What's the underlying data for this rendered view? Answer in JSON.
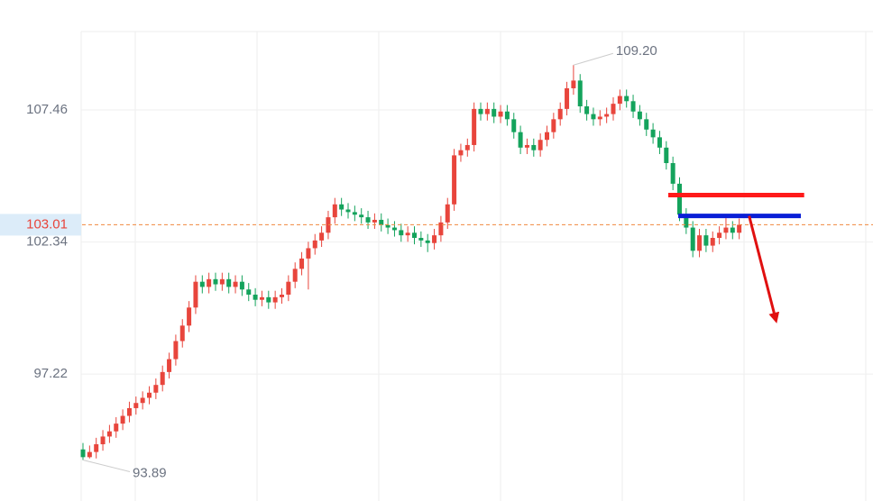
{
  "chart_data": {
    "type": "candlestick",
    "ylim": [
      92.3,
      110.5
    ],
    "yticks": [
      97.22,
      102.34,
      107.46
    ],
    "grid": true,
    "up_color": "#e8453c",
    "down_color": "#14a35c",
    "open": [
      94.3,
      94.0,
      94.2,
      94.5,
      94.8,
      95.0,
      95.3,
      95.6,
      95.9,
      96.1,
      96.3,
      96.5,
      96.8,
      97.3,
      97.8,
      98.5,
      99.1,
      99.8,
      100.8,
      100.6,
      100.9,
      100.7,
      100.9,
      100.6,
      100.8,
      100.5,
      100.3,
      100.1,
      100.2,
      100.0,
      100.2,
      100.3,
      100.8,
      101.3,
      101.7,
      102.1,
      102.4,
      102.7,
      103.3,
      103.8,
      103.6,
      103.5,
      103.4,
      103.3,
      103.1,
      103.2,
      103.0,
      102.9,
      102.8,
      102.6,
      102.7,
      102.5,
      102.4,
      102.3,
      102.6,
      103.1,
      103.8,
      105.7,
      105.9,
      106.1,
      107.5,
      107.3,
      107.5,
      107.2,
      107.4,
      107.1,
      106.6,
      106.0,
      106.1,
      105.9,
      106.3,
      106.6,
      107.1,
      107.5,
      108.3,
      108.6,
      107.6,
      107.3,
      107.1,
      107.2,
      107.3,
      107.7,
      108.0,
      107.8,
      107.4,
      107.1,
      106.7,
      106.4,
      106.0,
      105.4,
      104.6,
      103.4,
      102.9,
      102.0,
      102.6,
      102.2,
      102.5,
      102.7,
      102.9,
      102.7
    ],
    "high": [
      94.55,
      94.45,
      94.75,
      95.05,
      95.25,
      95.55,
      95.85,
      96.15,
      96.35,
      96.55,
      96.75,
      97.05,
      97.55,
      98.05,
      98.75,
      99.35,
      100.05,
      101.05,
      101.05,
      101.15,
      101.15,
      101.15,
      101.15,
      101.05,
      101.05,
      100.75,
      100.55,
      100.45,
      100.45,
      100.45,
      100.55,
      101.05,
      101.55,
      101.95,
      102.35,
      102.65,
      102.95,
      103.55,
      104.05,
      104.05,
      103.85,
      103.75,
      103.65,
      103.55,
      103.45,
      103.45,
      103.25,
      103.15,
      103.05,
      102.95,
      102.95,
      102.75,
      102.65,
      102.85,
      103.35,
      104.05,
      105.95,
      106.15,
      106.35,
      107.75,
      107.75,
      107.75,
      107.75,
      107.65,
      107.65,
      107.35,
      106.85,
      106.35,
      106.35,
      106.55,
      106.85,
      107.35,
      107.75,
      108.55,
      109.2,
      108.85,
      107.85,
      107.55,
      107.45,
      107.55,
      107.95,
      108.25,
      108.25,
      108.05,
      107.65,
      107.35,
      106.95,
      106.65,
      106.25,
      105.65,
      104.85,
      103.65,
      103.15,
      102.85,
      102.85,
      102.75,
      102.95,
      103.35,
      103.15,
      103.25
    ],
    "low": [
      93.89,
      93.95,
      93.95,
      94.25,
      94.55,
      94.75,
      95.05,
      95.35,
      95.65,
      95.85,
      96.05,
      96.25,
      96.55,
      97.05,
      97.55,
      98.25,
      98.85,
      99.55,
      100.35,
      100.35,
      100.45,
      100.45,
      100.35,
      100.35,
      100.25,
      100.05,
      99.85,
      99.85,
      99.75,
      99.75,
      99.95,
      100.05,
      100.55,
      101.05,
      100.5,
      101.85,
      102.15,
      102.45,
      103.05,
      103.35,
      103.25,
      103.15,
      103.05,
      102.85,
      102.85,
      102.75,
      102.65,
      102.55,
      102.35,
      102.35,
      102.25,
      102.15,
      101.95,
      102.05,
      102.35,
      102.85,
      103.55,
      105.45,
      105.65,
      105.85,
      107.05,
      107.05,
      106.95,
      106.95,
      106.85,
      106.35,
      105.75,
      105.75,
      105.65,
      105.65,
      106.05,
      106.35,
      106.85,
      107.25,
      108.05,
      107.35,
      107.05,
      106.85,
      106.85,
      106.95,
      107.05,
      107.45,
      107.55,
      107.15,
      106.85,
      106.45,
      106.15,
      105.75,
      105.15,
      104.35,
      103.15,
      102.65,
      101.75,
      101.75,
      101.95,
      101.95,
      102.25,
      102.45,
      102.45,
      102.45
    ],
    "close": [
      94.0,
      94.2,
      94.5,
      94.8,
      95.0,
      95.3,
      95.6,
      95.9,
      96.1,
      96.3,
      96.5,
      96.8,
      97.3,
      97.8,
      98.5,
      99.1,
      99.8,
      100.8,
      100.6,
      100.9,
      100.7,
      100.9,
      100.6,
      100.8,
      100.5,
      100.3,
      100.1,
      100.2,
      100.0,
      100.2,
      100.3,
      100.8,
      101.3,
      101.7,
      102.1,
      102.4,
      102.7,
      103.3,
      103.8,
      103.6,
      103.5,
      103.4,
      103.3,
      103.1,
      103.2,
      103.0,
      102.9,
      102.8,
      102.6,
      102.7,
      102.5,
      102.4,
      102.3,
      102.6,
      103.1,
      103.8,
      105.7,
      105.9,
      106.1,
      107.5,
      107.3,
      107.5,
      107.2,
      107.4,
      107.1,
      106.6,
      106.0,
      106.1,
      105.9,
      106.3,
      106.6,
      107.1,
      107.5,
      108.3,
      108.6,
      107.6,
      107.3,
      107.1,
      107.2,
      107.3,
      107.7,
      108.0,
      107.8,
      107.4,
      107.1,
      106.7,
      106.4,
      106.0,
      105.4,
      104.6,
      103.4,
      102.9,
      102.0,
      102.6,
      102.2,
      102.5,
      102.7,
      102.9,
      102.7,
      103.01
    ],
    "current_price": 103.01,
    "high_marker": {
      "index": 74,
      "value": 109.2,
      "label": "109.20"
    },
    "low_marker": {
      "index": 0,
      "value": 93.89
    },
    "drawings": [
      {
        "kind": "hline",
        "color": "#ff1a1a",
        "price": 104.16,
        "from": 88.3,
        "to": 108.8
      },
      {
        "kind": "hline",
        "color": "#0a1fd6",
        "price": 103.35,
        "from": 89.8,
        "to": 108.3
      },
      {
        "kind": "arrow",
        "color": "#e01010",
        "from": [
          100.5,
          103.35
        ],
        "to": [
          104.5,
          99.35
        ]
      }
    ]
  }
}
